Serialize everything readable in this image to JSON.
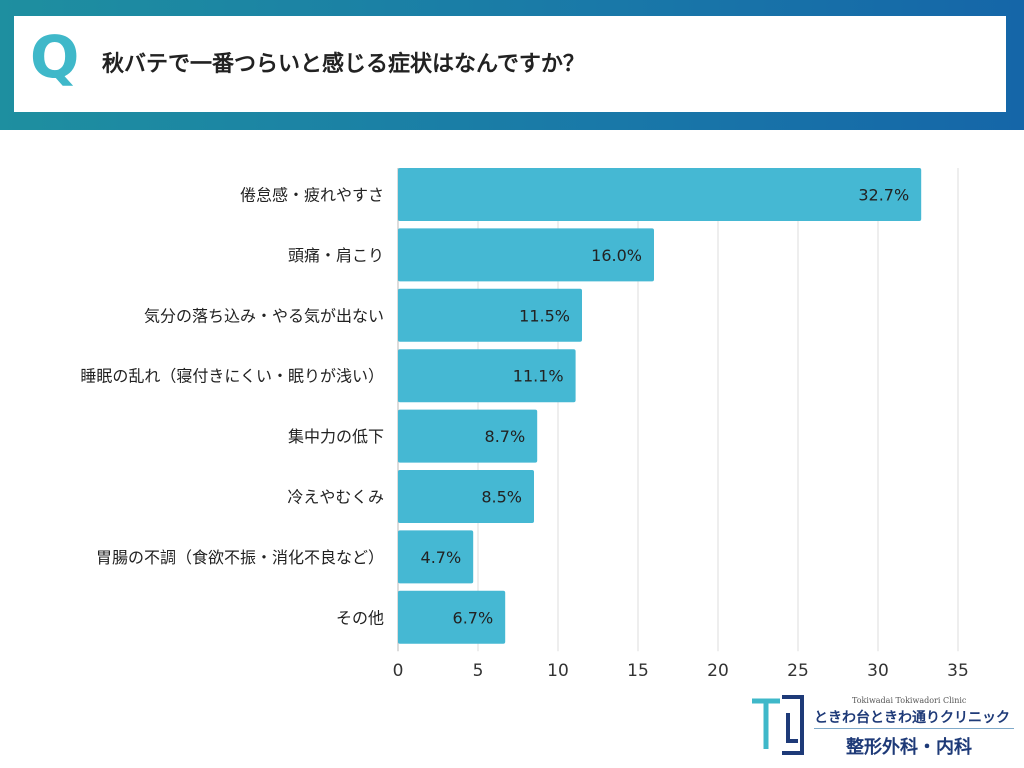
{
  "header": {
    "q_mark": "Q",
    "question": "秋バテで一番つらいと感じる症状はなんですか？"
  },
  "chart_data": {
    "type": "bar",
    "orientation": "horizontal",
    "title": "秋バテで一番つらいと感じる症状はなんですか？",
    "categories": [
      "倦怠感・疲れやすさ",
      "頭痛・肩こり",
      "気分の落ち込み・やる気が出ない",
      "睡眠の乱れ（寝付きにくい・眠りが浅い）",
      "集中力の低下",
      "冷えやむくみ",
      "胃腸の不調（食欲不振・消化不良など）",
      "その他"
    ],
    "values": [
      32.7,
      16.0,
      11.5,
      11.1,
      8.7,
      8.5,
      4.7,
      6.7
    ],
    "value_labels": [
      "32.7%",
      "16.0%",
      "11.5%",
      "11.1%",
      "8.7%",
      "8.5%",
      "4.7%",
      "6.7%"
    ],
    "xlim": [
      0,
      35
    ],
    "xticks": [
      0,
      5,
      10,
      15,
      20,
      25,
      30,
      35
    ],
    "grid": true,
    "bar_color": "#45b8d3"
  },
  "footer": {
    "clinic_en": "Tokiwadai Tokiwadori Clinic",
    "clinic_jp": "ときわ台ときわ通りクリニック",
    "departments": "整形外科・内科",
    "brand_color": "#1e3a78",
    "accent_color": "#3fb8c9"
  }
}
